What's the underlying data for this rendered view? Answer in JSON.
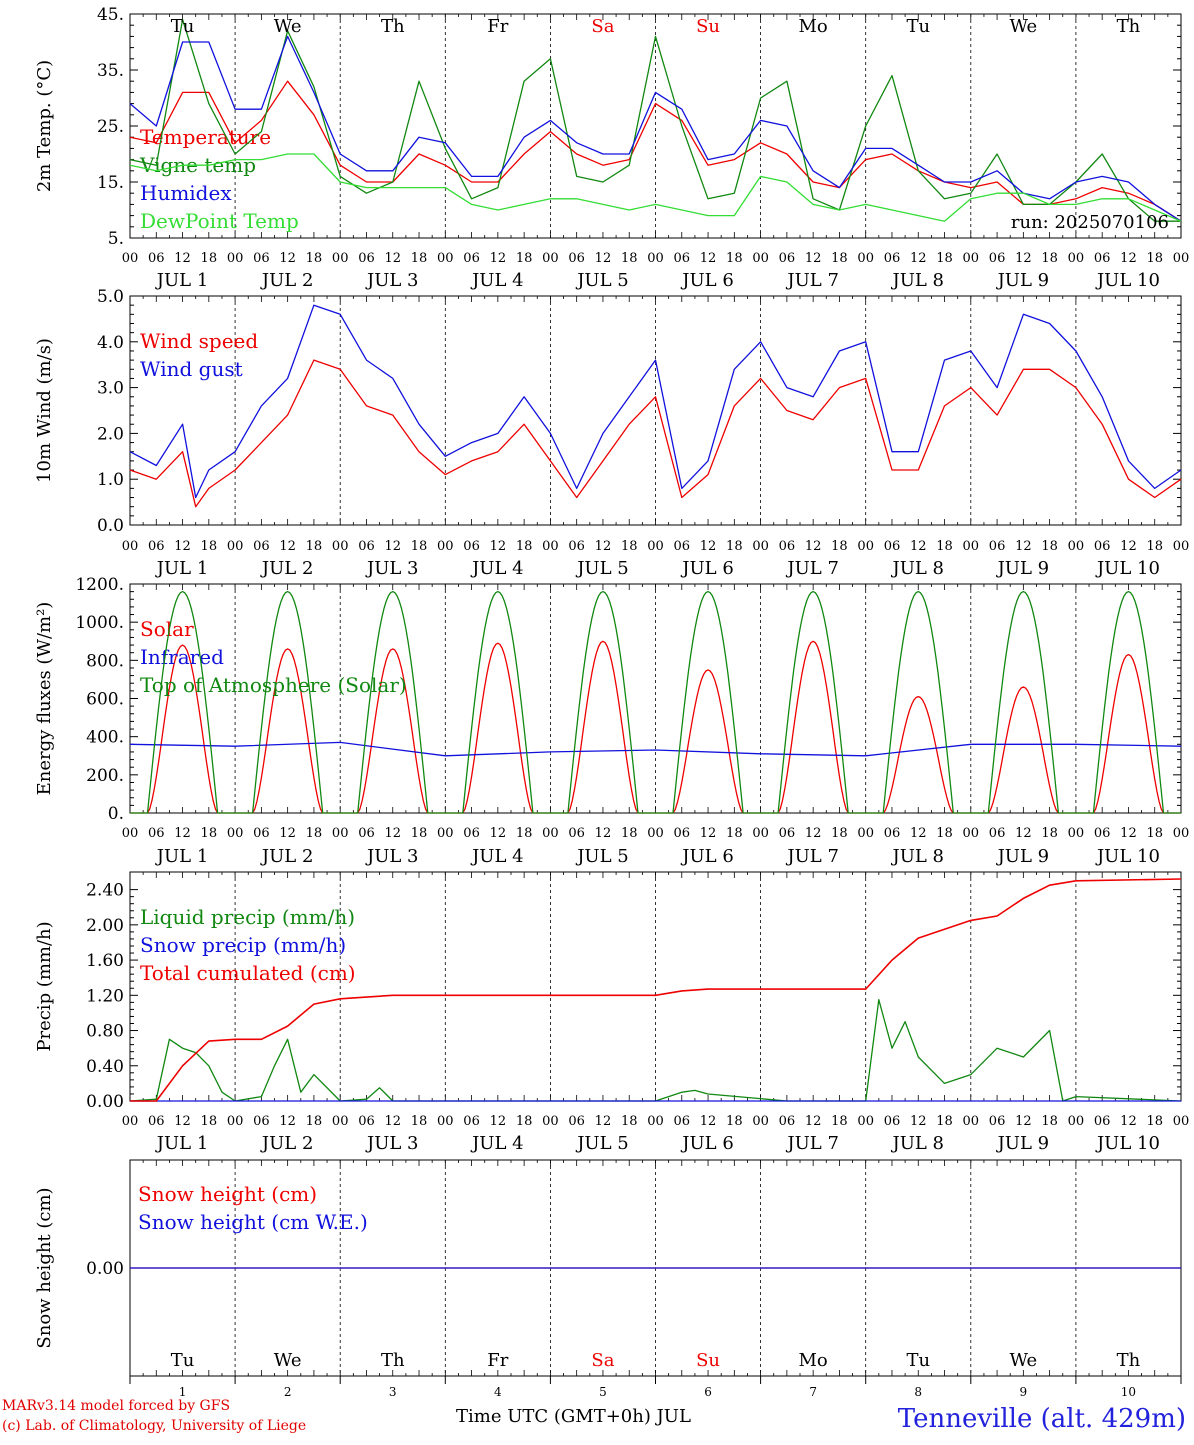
{
  "footer": {
    "credit_line1": "MARv3.14 model forced by GFS",
    "credit_line2": "(c) Lab. of Climatology, University of Liege",
    "xaxis_title": "Time UTC (GMT+0h) JUL",
    "station": "Tenneville (alt. 429m)"
  },
  "days": {
    "names": [
      "Tu",
      "We",
      "Th",
      "Fr",
      "Sa",
      "Su",
      "Mo",
      "Tu",
      "We",
      "Th"
    ],
    "weekend_flags": [
      false,
      false,
      false,
      false,
      true,
      true,
      false,
      false,
      false,
      false
    ],
    "date_labels": [
      "JUL  1",
      "JUL  2",
      "JUL  3",
      "JUL  4",
      "JUL  5",
      "JUL  6",
      "JUL  7",
      "JUL  8",
      "JUL  9",
      "JUL 10"
    ],
    "numbers": [
      "1",
      "2",
      "3",
      "4",
      "5",
      "6",
      "7",
      "8",
      "9",
      "10"
    ],
    "hour_labels": [
      "00",
      "06",
      "12",
      "18"
    ],
    "end_hour_label": "00"
  },
  "colors": {
    "red": "#ee0000",
    "green": "#118811",
    "blue": "#1111dd",
    "lightgreen": "#33dd33",
    "weekend": "#ee0000",
    "station": "#2222dd"
  },
  "chart_data": [
    {
      "id": "temp",
      "type": "line",
      "ylabel": "2m Temp. (°C)",
      "ylim": [
        5,
        45
      ],
      "yticks": [
        5,
        15,
        25,
        35,
        45
      ],
      "ytick_labels": [
        "5.",
        "15.",
        "25.",
        "35.",
        "45."
      ],
      "annotation": "run: 2025070106",
      "series": [
        {
          "name": "Temperature",
          "color": "red",
          "x": [
            0,
            6,
            12,
            18,
            24,
            30,
            36,
            42,
            48,
            54,
            60,
            66,
            72,
            78,
            84,
            90,
            96,
            102,
            108,
            114,
            120,
            126,
            132,
            138,
            144,
            150,
            156,
            162,
            168,
            174,
            180,
            186,
            192,
            198,
            204,
            210,
            216,
            222,
            228,
            234,
            240
          ],
          "y": [
            23,
            22,
            31,
            31,
            22,
            26,
            33,
            27,
            18,
            15,
            15,
            20,
            18,
            15,
            15,
            20,
            24,
            20,
            18,
            19,
            29,
            26,
            18,
            19,
            22,
            20,
            15,
            14,
            19,
            20,
            17,
            15,
            14,
            15,
            11,
            11,
            12,
            14,
            13,
            11,
            8
          ]
        },
        {
          "name": "Vigne temp",
          "color": "green",
          "x": [
            0,
            6,
            12,
            18,
            24,
            30,
            36,
            42,
            48,
            54,
            60,
            66,
            72,
            78,
            84,
            90,
            96,
            102,
            108,
            114,
            120,
            126,
            132,
            138,
            144,
            150,
            156,
            162,
            168,
            174,
            180,
            186,
            192,
            198,
            204,
            210,
            216,
            222,
            228,
            234,
            240
          ],
          "y": [
            19,
            18,
            44,
            29,
            20,
            24,
            42,
            32,
            16,
            13,
            15,
            33,
            21,
            12,
            14,
            33,
            37,
            16,
            15,
            18,
            41,
            25,
            12,
            13,
            30,
            33,
            12,
            10,
            25,
            34,
            17,
            12,
            13,
            20,
            11,
            11,
            15,
            20,
            12,
            8,
            8
          ]
        },
        {
          "name": "Humidex",
          "color": "blue",
          "x": [
            0,
            6,
            12,
            18,
            24,
            30,
            36,
            42,
            48,
            54,
            60,
            66,
            72,
            78,
            84,
            90,
            96,
            102,
            108,
            114,
            120,
            126,
            132,
            138,
            144,
            150,
            156,
            162,
            168,
            174,
            180,
            186,
            192,
            198,
            204,
            210,
            216,
            222,
            228,
            234,
            240
          ],
          "y": [
            29,
            25,
            40,
            40,
            28,
            28,
            41,
            31,
            20,
            17,
            17,
            23,
            22,
            16,
            16,
            23,
            26,
            22,
            20,
            20,
            31,
            28,
            19,
            20,
            26,
            25,
            17,
            14,
            21,
            21,
            18,
            15,
            15,
            17,
            13,
            12,
            15,
            16,
            15,
            11,
            8
          ]
        },
        {
          "name": "DewPoint Temp",
          "color": "lightgreen",
          "x": [
            0,
            6,
            12,
            18,
            24,
            30,
            36,
            42,
            48,
            54,
            60,
            66,
            72,
            78,
            84,
            90,
            96,
            102,
            108,
            114,
            120,
            126,
            132,
            138,
            144,
            150,
            156,
            162,
            168,
            174,
            180,
            186,
            192,
            198,
            204,
            210,
            216,
            222,
            228,
            234,
            240
          ],
          "y": [
            18,
            17,
            18,
            18,
            19,
            19,
            20,
            20,
            15,
            14,
            14,
            14,
            14,
            11,
            10,
            11,
            12,
            12,
            11,
            10,
            11,
            10,
            9,
            9,
            16,
            15,
            11,
            10,
            11,
            10,
            9,
            8,
            12,
            13,
            13,
            11,
            11,
            12,
            12,
            10,
            8
          ]
        }
      ]
    },
    {
      "id": "wind",
      "type": "line",
      "ylabel": "10m Wind (m/s)",
      "ylim": [
        0,
        5
      ],
      "yticks": [
        0,
        1,
        2,
        3,
        4,
        5
      ],
      "ytick_labels": [
        "0.0",
        "1.0",
        "2.0",
        "3.0",
        "4.0",
        "5.0"
      ],
      "series": [
        {
          "name": "Wind speed",
          "color": "red",
          "x": [
            0,
            6,
            12,
            15,
            18,
            24,
            30,
            36,
            42,
            48,
            54,
            60,
            66,
            72,
            78,
            84,
            90,
            96,
            102,
            108,
            114,
            120,
            126,
            132,
            138,
            144,
            150,
            156,
            162,
            168,
            174,
            180,
            186,
            192,
            198,
            204,
            210,
            216,
            222,
            228,
            234,
            240
          ],
          "y": [
            1.2,
            1.0,
            1.6,
            0.4,
            0.8,
            1.2,
            1.8,
            2.4,
            3.6,
            3.4,
            2.6,
            2.4,
            1.6,
            1.1,
            1.4,
            1.6,
            2.2,
            1.4,
            0.6,
            1.4,
            2.2,
            2.8,
            0.6,
            1.1,
            2.6,
            3.2,
            2.5,
            2.3,
            3.0,
            3.2,
            1.2,
            1.2,
            2.6,
            3.0,
            2.4,
            3.4,
            3.4,
            3.0,
            2.2,
            1.0,
            0.6,
            1.0
          ]
        },
        {
          "name": "Wind gust",
          "color": "blue",
          "x": [
            0,
            6,
            12,
            15,
            18,
            24,
            30,
            36,
            42,
            48,
            54,
            60,
            66,
            72,
            78,
            84,
            90,
            96,
            102,
            108,
            114,
            120,
            126,
            132,
            138,
            144,
            150,
            156,
            162,
            168,
            174,
            180,
            186,
            192,
            198,
            204,
            210,
            216,
            222,
            228,
            234,
            240
          ],
          "y": [
            1.6,
            1.3,
            2.2,
            0.6,
            1.2,
            1.6,
            2.6,
            3.2,
            4.8,
            4.6,
            3.6,
            3.2,
            2.2,
            1.5,
            1.8,
            2.0,
            2.8,
            2.0,
            0.8,
            2.0,
            2.8,
            3.6,
            0.8,
            1.4,
            3.4,
            4.0,
            3.0,
            2.8,
            3.8,
            4.0,
            1.6,
            1.6,
            3.6,
            3.8,
            3.0,
            4.6,
            4.4,
            3.8,
            2.8,
            1.4,
            0.8,
            1.2
          ]
        }
      ]
    },
    {
      "id": "energy",
      "type": "line",
      "ylabel": "Energy fluxes (W/m²)",
      "ylim": [
        0,
        1200
      ],
      "yticks": [
        0,
        200,
        400,
        600,
        800,
        1000,
        1200
      ],
      "ytick_labels": [
        "0.",
        "200.",
        "400.",
        "600.",
        "800.",
        "1000.",
        "1200."
      ],
      "series": [
        {
          "name": "Solar",
          "color": "red",
          "peaks": [
            880,
            860,
            860,
            890,
            900,
            750,
            900,
            610,
            660,
            830
          ]
        },
        {
          "name": "Infrared",
          "color": "blue",
          "x": [
            0,
            24,
            48,
            72,
            96,
            120,
            144,
            168,
            192,
            216,
            240
          ],
          "y": [
            360,
            350,
            370,
            300,
            320,
            330,
            310,
            300,
            360,
            360,
            350
          ]
        },
        {
          "name": "Top of Atmosphere (Solar)",
          "color": "green",
          "peaks": [
            1160,
            1160,
            1160,
            1160,
            1160,
            1160,
            1160,
            1160,
            1160,
            1160
          ]
        }
      ]
    },
    {
      "id": "precip",
      "type": "line",
      "ylabel": "Precip (mm/h)",
      "ylim": [
        0,
        2.6
      ],
      "yticks": [
        0,
        0.4,
        0.8,
        1.2,
        1.6,
        2.0,
        2.4
      ],
      "ytick_labels": [
        "0.00",
        "0.40",
        "0.80",
        "1.20",
        "1.60",
        "2.00",
        "2.40"
      ],
      "series": [
        {
          "name": "Liquid precip (mm/h)",
          "color": "green",
          "x": [
            0,
            6,
            9,
            12,
            15,
            18,
            21,
            24,
            30,
            33,
            36,
            39,
            42,
            48,
            54,
            57,
            60,
            120,
            126,
            129,
            132,
            150,
            168,
            171,
            174,
            177,
            180,
            186,
            192,
            198,
            204,
            210,
            213,
            216,
            240
          ],
          "y": [
            0,
            0.02,
            0.7,
            0.6,
            0.55,
            0.4,
            0.1,
            0,
            0.05,
            0.4,
            0.7,
            0.1,
            0.3,
            0,
            0.02,
            0.15,
            0,
            0,
            0.1,
            0.12,
            0.08,
            0,
            0,
            1.15,
            0.6,
            0.9,
            0.5,
            0.2,
            0.3,
            0.6,
            0.5,
            0.8,
            0,
            0.05,
            0
          ]
        },
        {
          "name": "Snow precip (mm/h)",
          "color": "blue",
          "x": [
            0,
            240
          ],
          "y": [
            0,
            0
          ]
        },
        {
          "name": "Total cumulated (cm)",
          "color": "red",
          "x": [
            0,
            6,
            12,
            18,
            24,
            30,
            36,
            42,
            48,
            54,
            60,
            120,
            126,
            132,
            168,
            174,
            180,
            186,
            192,
            198,
            204,
            210,
            216,
            240
          ],
          "y": [
            0,
            0,
            0.4,
            0.68,
            0.7,
            0.7,
            0.85,
            1.1,
            1.16,
            1.18,
            1.2,
            1.2,
            1.25,
            1.27,
            1.27,
            1.6,
            1.85,
            1.95,
            2.05,
            2.1,
            2.3,
            2.45,
            2.5,
            2.52
          ]
        }
      ]
    },
    {
      "id": "snow",
      "type": "line",
      "ylabel": "Snow height (cm)",
      "ylim": [
        -1,
        1
      ],
      "yticks": [
        0
      ],
      "ytick_labels": [
        "0.00"
      ],
      "series": [
        {
          "name": "Snow height (cm)",
          "color": "red",
          "x": [
            0,
            240
          ],
          "y": [
            0,
            0
          ]
        },
        {
          "name": "Snow height (cm W.E.)",
          "color": "blue",
          "x": [
            0,
            240
          ],
          "y": [
            0,
            0
          ]
        }
      ]
    }
  ]
}
